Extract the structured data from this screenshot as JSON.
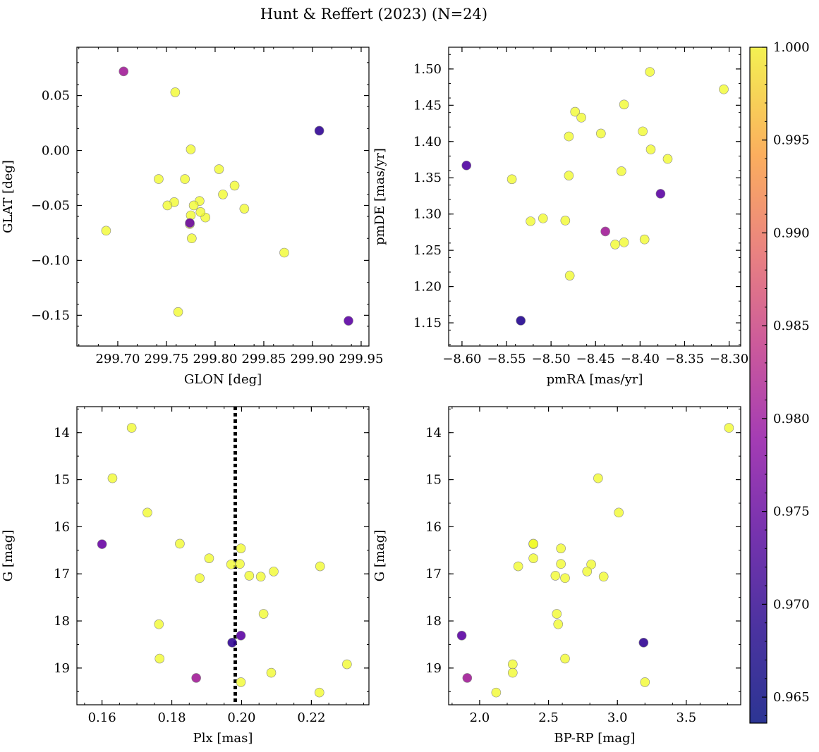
{
  "title": "Hunt & Reffert (2023) (N=24)",
  "colors": {
    "axis": "#000000",
    "marker_edge": "#888888",
    "vline": "#000000",
    "background": "#ffffff"
  },
  "colorbar": {
    "colormap": "plasma",
    "vmin": 0.9636,
    "vmax": 1.0,
    "ticks": [
      0.965,
      0.97,
      0.975,
      0.98,
      0.985,
      0.99,
      0.995,
      1.0
    ],
    "tick_labels": [
      "0.965",
      "0.970",
      "0.975",
      "0.980",
      "0.985",
      "0.990",
      "0.995",
      "1.000"
    ]
  },
  "chart_data": [
    {
      "type": "scatter",
      "name": "glon-glat",
      "xlabel": "GLON [deg]",
      "ylabel": "GLAT [deg]",
      "xlim": [
        299.658,
        299.958
      ],
      "ylim": [
        -0.178,
        0.094
      ],
      "invert_y": false,
      "xticks": [
        299.7,
        299.75,
        299.8,
        299.85,
        299.9,
        299.95
      ],
      "xtick_labels": [
        "299.70",
        "299.75",
        "299.80",
        "299.85",
        "299.90",
        "299.95"
      ],
      "yticks": [
        -0.15,
        -0.1,
        -0.05,
        0.0,
        0.05
      ],
      "ytick_labels": [
        "−0.15",
        "−0.10",
        "−0.05",
        "0.00",
        "0.05"
      ],
      "x": [
        299.706,
        299.759,
        299.907,
        299.775,
        299.742,
        299.804,
        299.769,
        299.82,
        299.784,
        299.758,
        299.751,
        299.778,
        299.79,
        299.808,
        299.785,
        299.775,
        299.83,
        299.776,
        299.774,
        299.688,
        299.871,
        299.762,
        299.937,
        299.774
      ],
      "y": [
        0.072,
        0.053,
        0.018,
        0.001,
        -0.026,
        -0.017,
        -0.026,
        -0.032,
        -0.046,
        -0.047,
        -0.05,
        -0.05,
        -0.061,
        -0.04,
        -0.056,
        -0.059,
        -0.053,
        -0.08,
        -0.067,
        -0.073,
        -0.093,
        -0.147,
        -0.155,
        -0.066
      ],
      "c": [
        0.975,
        1.0,
        0.966,
        1.0,
        1.0,
        1.0,
        1.0,
        1.0,
        1.0,
        1.0,
        1.0,
        1.0,
        1.0,
        1.0,
        1.0,
        1.0,
        1.0,
        1.0,
        1.0,
        1.0,
        1.0,
        1.0,
        0.969,
        0.97
      ]
    },
    {
      "type": "scatter",
      "name": "pmra-pmde",
      "xlabel": "pmRA [mas/yr]",
      "ylabel": "pmDE [mas/yr]",
      "xlim": [
        -8.615,
        -8.287
      ],
      "ylim": [
        1.118,
        1.53
      ],
      "invert_y": false,
      "xticks": [
        -8.6,
        -8.55,
        -8.5,
        -8.45,
        -8.4,
        -8.35,
        -8.3
      ],
      "xtick_labels": [
        "−8.60",
        "−8.55",
        "−8.50",
        "−8.45",
        "−8.40",
        "−8.35",
        "−8.30"
      ],
      "yticks": [
        1.15,
        1.2,
        1.25,
        1.3,
        1.35,
        1.4,
        1.45,
        1.5
      ],
      "ytick_labels": [
        "1.15",
        "1.20",
        "1.25",
        "1.30",
        "1.35",
        "1.40",
        "1.45",
        "1.50"
      ],
      "x": [
        -8.389,
        -8.306,
        -8.418,
        -8.473,
        -8.466,
        -8.444,
        -8.397,
        -8.48,
        -8.388,
        -8.369,
        -8.595,
        -8.421,
        -8.544,
        -8.48,
        -8.377,
        -8.509,
        -8.523,
        -8.484,
        -8.439,
        -8.395,
        -8.428,
        -8.418,
        -8.479,
        -8.534
      ],
      "y": [
        1.496,
        1.472,
        1.451,
        1.441,
        1.433,
        1.411,
        1.414,
        1.407,
        1.389,
        1.376,
        1.367,
        1.359,
        1.348,
        1.353,
        1.328,
        1.294,
        1.29,
        1.291,
        1.276,
        1.265,
        1.258,
        1.261,
        1.215,
        1.153
      ],
      "c": [
        1.0,
        1.0,
        1.0,
        1.0,
        1.0,
        1.0,
        1.0,
        1.0,
        1.0,
        1.0,
        0.968,
        1.0,
        1.0,
        1.0,
        0.969,
        1.0,
        1.0,
        1.0,
        0.975,
        1.0,
        1.0,
        1.0,
        1.0,
        0.965
      ]
    },
    {
      "type": "scatter",
      "name": "plx-g",
      "xlabel": "Plx [mas]",
      "ylabel": "G [mag]",
      "xlim": [
        0.1528,
        0.2365
      ],
      "ylim": [
        13.45,
        19.78
      ],
      "invert_y": true,
      "vline": 0.1982,
      "xticks": [
        0.16,
        0.18,
        0.2,
        0.22
      ],
      "xtick_labels": [
        "0.16",
        "0.18",
        "0.20",
        "0.22"
      ],
      "yticks": [
        14,
        15,
        16,
        17,
        18,
        19
      ],
      "ytick_labels": [
        "14",
        "15",
        "16",
        "17",
        "18",
        "19"
      ],
      "x": [
        0.1685,
        0.163,
        0.173,
        0.16,
        0.1823,
        0.1998,
        0.1907,
        0.197,
        0.1995,
        0.2022,
        0.2055,
        0.2092,
        0.2225,
        0.188,
        0.2063,
        0.1763,
        0.1765,
        0.1973,
        0.1998,
        0.187,
        0.1998,
        0.2085,
        0.2302,
        0.2223
      ],
      "y": [
        13.9,
        14.97,
        15.7,
        16.37,
        16.36,
        16.46,
        16.67,
        16.8,
        16.79,
        17.04,
        17.06,
        16.95,
        16.84,
        17.09,
        17.85,
        18.07,
        18.8,
        18.46,
        18.31,
        19.21,
        19.3,
        19.1,
        18.92,
        19.52
      ],
      "c": [
        1.0,
        1.0,
        1.0,
        0.97,
        1.0,
        1.0,
        1.0,
        1.0,
        1.0,
        1.0,
        1.0,
        1.0,
        1.0,
        1.0,
        1.0,
        1.0,
        1.0,
        0.966,
        0.969,
        0.975,
        1.0,
        1.0,
        1.0,
        1.0
      ]
    },
    {
      "type": "scatter",
      "name": "bprp-g",
      "xlabel": "BP-RP [mag]",
      "ylabel": "G [mag]",
      "xlim": [
        1.775,
        3.895
      ],
      "ylim": [
        13.45,
        19.78
      ],
      "invert_y": true,
      "xticks": [
        2.0,
        2.5,
        3.0,
        3.5
      ],
      "xtick_labels": [
        "2.0",
        "2.5",
        "3.0",
        "3.5"
      ],
      "yticks": [
        14,
        15,
        16,
        17,
        18,
        19
      ],
      "ytick_labels": [
        "14",
        "15",
        "16",
        "17",
        "18",
        "19"
      ],
      "x": [
        3.81,
        2.86,
        3.01,
        2.39,
        2.39,
        2.59,
        2.39,
        2.28,
        2.59,
        2.81,
        2.78,
        2.55,
        2.62,
        2.9,
        2.56,
        2.57,
        1.87,
        2.62,
        3.19,
        2.24,
        2.24,
        1.91,
        3.2,
        2.12
      ],
      "y": [
        13.9,
        14.97,
        15.7,
        16.37,
        16.36,
        16.46,
        16.67,
        16.84,
        16.79,
        16.8,
        16.95,
        17.04,
        17.09,
        17.06,
        17.85,
        18.07,
        18.31,
        18.8,
        18.46,
        18.92,
        19.1,
        19.21,
        19.3,
        19.52
      ],
      "c": [
        1.0,
        1.0,
        1.0,
        1.0,
        1.0,
        1.0,
        1.0,
        1.0,
        1.0,
        1.0,
        1.0,
        1.0,
        1.0,
        1.0,
        1.0,
        1.0,
        0.969,
        1.0,
        0.966,
        1.0,
        1.0,
        0.975,
        1.0,
        1.0
      ]
    }
  ]
}
